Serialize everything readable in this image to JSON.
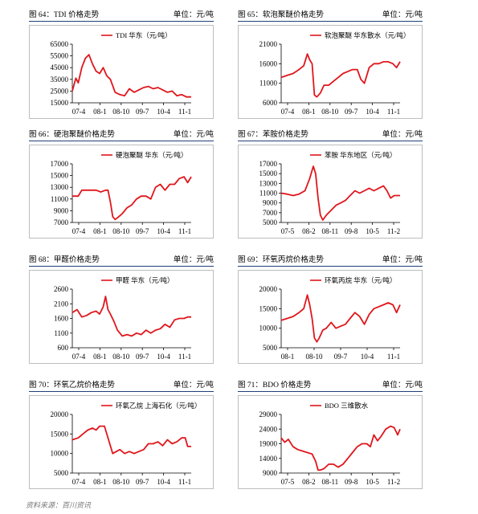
{
  "source": "资料来源：百川资讯",
  "line_color": "#e0161c",
  "frame_color": "#bdbdbd",
  "header_rule_color": "#1f3f7a",
  "chart_data": [
    {
      "header": "图 64：TDI 价格走势",
      "unit": "单位：元/吨",
      "type": "line",
      "legend": "TDI 华东（元/吨）",
      "ylim": [
        15000,
        65000
      ],
      "yticks": [
        "65000",
        "55000",
        "45000",
        "35000",
        "25000",
        "15000"
      ],
      "xticks": [
        "07-4",
        "08-1",
        "08-10",
        "09-7",
        "10-4",
        "11-1"
      ],
      "xlim": [
        0,
        100
      ],
      "x": [
        0,
        3,
        5,
        8,
        11,
        14,
        17,
        20,
        23,
        26,
        29,
        32,
        36,
        40,
        44,
        48,
        52,
        56,
        60,
        64,
        68,
        72,
        76,
        80,
        84,
        88,
        92,
        96,
        100
      ],
      "values": [
        25000,
        36000,
        32000,
        45000,
        53000,
        56000,
        48000,
        42000,
        40000,
        45000,
        38000,
        35000,
        24000,
        22000,
        21000,
        27000,
        24000,
        26000,
        28000,
        29000,
        27000,
        28000,
        26000,
        24000,
        25000,
        21000,
        22000,
        20000,
        20000
      ]
    },
    {
      "header": "图 65：软泡聚醚价格走势",
      "unit": "单位：元/吨",
      "type": "line",
      "legend": "软泡聚醚 华东散水（元/吨）",
      "ylim": [
        6000,
        21000
      ],
      "yticks": [
        "21000",
        "16000",
        "11000",
        "6000"
      ],
      "xticks": [
        "07-4",
        "08-1",
        "08-10",
        "09-7",
        "10-4",
        "11-1"
      ],
      "xlim": [
        0,
        100
      ],
      "x": [
        0,
        5,
        10,
        15,
        19,
        22,
        24,
        26,
        28,
        30,
        33,
        36,
        40,
        44,
        48,
        52,
        56,
        60,
        64,
        67,
        70,
        74,
        78,
        82,
        86,
        90,
        94,
        97,
        100
      ],
      "values": [
        12500,
        13000,
        13500,
        14500,
        15500,
        18500,
        17000,
        16000,
        8000,
        7500,
        8500,
        10500,
        10500,
        11500,
        12500,
        13500,
        14000,
        14500,
        14500,
        12000,
        11000,
        15000,
        16000,
        16000,
        16500,
        16500,
        16000,
        15000,
        16500
      ]
    },
    {
      "header": "图 66：硬泡聚醚价格走势",
      "unit": "单位：元/吨",
      "type": "line",
      "legend": "硬泡聚醚 华东（元/吨）",
      "ylim": [
        7000,
        17000
      ],
      "yticks": [
        "17000",
        "15000",
        "13000",
        "11000",
        "9000",
        "7000"
      ],
      "xticks": [
        "07-4",
        "08-1",
        "08-10",
        "09-7",
        "10-4",
        "11-1"
      ],
      "xlim": [
        0,
        100
      ],
      "x": [
        0,
        5,
        8,
        12,
        16,
        20,
        24,
        28,
        30,
        32,
        34,
        36,
        38,
        42,
        46,
        50,
        54,
        58,
        62,
        66,
        70,
        74,
        78,
        82,
        86,
        90,
        94,
        97,
        100
      ],
      "values": [
        11500,
        11500,
        12500,
        12500,
        12500,
        12500,
        12200,
        12500,
        12500,
        10500,
        8000,
        7500,
        7800,
        8500,
        9500,
        10000,
        11000,
        11500,
        11500,
        11000,
        13000,
        13500,
        12500,
        13500,
        13500,
        14500,
        14800,
        13800,
        14800
      ]
    },
    {
      "header": "图 67：苯胺价格走势",
      "unit": "单位：元/吨",
      "type": "line",
      "legend": "苯胺 华东地区（元/吨）",
      "ylim": [
        5000,
        17000
      ],
      "yticks": [
        "17000",
        "15000",
        "13000",
        "11000",
        "9000",
        "7000",
        "5000"
      ],
      "xticks": [
        "07-5",
        "08-2",
        "08-11",
        "09-8",
        "10-5",
        "11-2"
      ],
      "xlim": [
        0,
        100
      ],
      "x": [
        0,
        5,
        10,
        15,
        20,
        24,
        27,
        29,
        31,
        33,
        35,
        38,
        42,
        46,
        50,
        54,
        58,
        62,
        66,
        70,
        74,
        78,
        82,
        86,
        89,
        92,
        95,
        100
      ],
      "values": [
        11000,
        10800,
        10500,
        10800,
        11500,
        14000,
        16500,
        15000,
        10000,
        6500,
        5500,
        6500,
        7500,
        8500,
        9000,
        9500,
        10500,
        11500,
        11000,
        11500,
        12000,
        11500,
        12000,
        12500,
        11500,
        10000,
        10500,
        10500
      ]
    },
    {
      "header": "图 68：甲醛价格走势",
      "unit": "单位：元/吨",
      "type": "line",
      "legend": "甲醛 华东（元/吨）",
      "ylim": [
        600,
        2600
      ],
      "yticks": [
        "2600",
        "2100",
        "1600",
        "1100",
        "600"
      ],
      "xticks": [
        "07-4",
        "08-1",
        "08-10",
        "09-7",
        "10-4",
        "11-1"
      ],
      "xlim": [
        0,
        100
      ],
      "x": [
        0,
        4,
        8,
        12,
        16,
        20,
        23,
        26,
        28,
        30,
        32,
        35,
        38,
        42,
        46,
        50,
        54,
        58,
        62,
        66,
        70,
        74,
        78,
        82,
        86,
        90,
        94,
        97,
        100
      ],
      "values": [
        1800,
        1900,
        1650,
        1700,
        1800,
        1850,
        1750,
        2000,
        2350,
        1900,
        1750,
        1500,
        1200,
        1000,
        1050,
        1000,
        1100,
        1050,
        1200,
        1100,
        1200,
        1250,
        1400,
        1300,
        1550,
        1600,
        1600,
        1650,
        1650
      ]
    },
    {
      "header": "图 69：环氧丙烷价格走势",
      "unit": "单位：元/吨",
      "type": "line",
      "legend": "环氧丙烷 华东（元/吨）",
      "ylim": [
        5000,
        20000
      ],
      "yticks": [
        "20000",
        "15000",
        "10000",
        "5000"
      ],
      "xticks": [
        "08-1",
        "08-10",
        "09-7",
        "10-4",
        "11-1"
      ],
      "xlim": [
        0,
        100
      ],
      "x": [
        0,
        5,
        10,
        15,
        19,
        22,
        24,
        26,
        28,
        30,
        32,
        35,
        38,
        42,
        46,
        50,
        54,
        58,
        62,
        66,
        70,
        74,
        78,
        82,
        86,
        90,
        94,
        97,
        100
      ],
      "values": [
        12000,
        12500,
        13000,
        14000,
        15000,
        18500,
        16000,
        12500,
        7500,
        6500,
        7500,
        9500,
        10000,
        11500,
        10000,
        10500,
        11000,
        12500,
        14000,
        13000,
        11000,
        13500,
        15000,
        15500,
        16000,
        16500,
        16000,
        14000,
        16000
      ]
    },
    {
      "header": "图 70：环氧乙烷价格走势",
      "unit": "单位：元/吨",
      "type": "line",
      "legend": "环氧乙烷 上海石化（元/吨）",
      "ylim": [
        5000,
        20000
      ],
      "yticks": [
        "20000",
        "15000",
        "10000",
        "5000"
      ],
      "xticks": [
        "07-4",
        "08-1",
        "08-10",
        "09-7",
        "10-4",
        "11-1"
      ],
      "xlim": [
        0,
        100
      ],
      "x": [
        0,
        5,
        9,
        13,
        17,
        20,
        23,
        27,
        31,
        34,
        37,
        40,
        44,
        48,
        52,
        56,
        60,
        64,
        68,
        72,
        76,
        80,
        84,
        88,
        92,
        95,
        97,
        100
      ],
      "values": [
        13500,
        14000,
        15000,
        16000,
        16500,
        16000,
        17000,
        17000,
        13000,
        10000,
        10500,
        11000,
        10000,
        10500,
        10000,
        10500,
        11000,
        12500,
        12500,
        13000,
        12000,
        13500,
        12500,
        13000,
        14000,
        14000,
        11800,
        11800
      ]
    },
    {
      "header": "图 71：BDO 价格走势",
      "unit": "单位：元/吨",
      "type": "line",
      "legend": "BDO 三维散水",
      "ylim": [
        9000,
        29000
      ],
      "yticks": [
        "29000",
        "24000",
        "19000",
        "14000",
        "9000"
      ],
      "xticks": [
        "07-5",
        "08-2",
        "08-11",
        "09-8",
        "10-5",
        "11-2"
      ],
      "xlim": [
        0,
        100
      ],
      "x": [
        0,
        3,
        6,
        10,
        14,
        18,
        22,
        26,
        29,
        31,
        33,
        36,
        40,
        44,
        48,
        52,
        56,
        60,
        64,
        68,
        72,
        75,
        78,
        81,
        84,
        88,
        92,
        95,
        98,
        100
      ],
      "values": [
        21000,
        19500,
        20500,
        18000,
        17000,
        16500,
        16000,
        15500,
        13000,
        10000,
        10000,
        10500,
        12000,
        12000,
        11000,
        12000,
        14000,
        16000,
        18000,
        19000,
        19000,
        18000,
        22000,
        20000,
        21500,
        24000,
        25000,
        24500,
        22000,
        24000
      ]
    }
  ]
}
